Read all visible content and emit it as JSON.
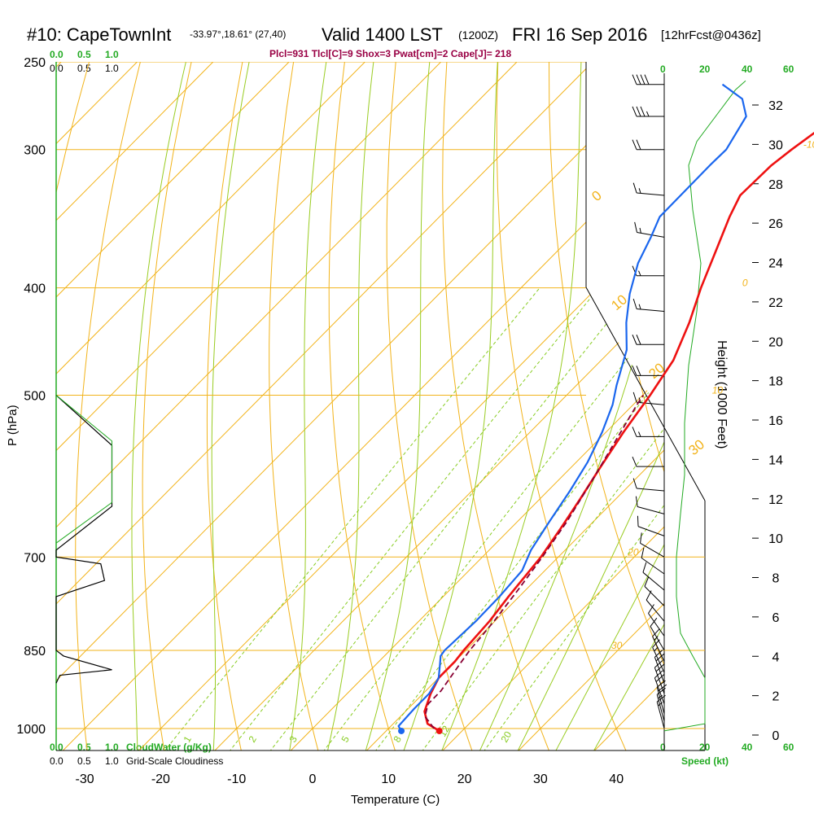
{
  "header": {
    "station": "#10: CapeTownInt",
    "coords": "-33.97°,18.61° (27,40)",
    "valid": "Valid 1400 LST",
    "zulu": "(1200Z)",
    "date": "FRI 16 Sep 2016",
    "forecast": "[12hrFcst@0436z]",
    "indices": "Plcl=931 Tlcl[C]=9 Shox=3 Pwat[cm]=2 Cape[J]= 218"
  },
  "left_scale": {
    "cloudwater_ticks": [
      "0.0",
      "0.5",
      "1.0"
    ],
    "cloudwater_label": "CloudWater (g/Kg)",
    "cloudiness_ticks": [
      "0.0",
      "0.5",
      "1.0"
    ],
    "cloudiness_label": "Grid-Scale Cloudiness"
  },
  "right_scale": {
    "speed_ticks": [
      "0",
      "20",
      "40",
      "60"
    ],
    "speed_label": "Speed (kt)",
    "height_label": "Height (1000 Feet)"
  },
  "colors": {
    "temperature": "#ee1111",
    "dewpoint": "#1a66ee",
    "parcel": "#880033",
    "isobar": "#f2b31a",
    "dry_adiabat": "#f2b31a",
    "moist_adiabat": "#99cc22",
    "mixing_ratio": "#88cc22",
    "green_text": "#22aa22",
    "title_magenta": "#990044"
  },
  "chart_data": {
    "type": "line",
    "title": "#10: CapeTownInt",
    "xlabel": "Temperature (C)",
    "ylabel": "P (hPa)",
    "x_ticks": [
      -30,
      -20,
      -10,
      0,
      10,
      20,
      30,
      40
    ],
    "xlim": [
      -34,
      47
    ],
    "pressure_ticks": [
      250,
      300,
      400,
      500,
      700,
      850,
      1000
    ],
    "ylim": [
      1010,
      250
    ],
    "height_ticks": [
      0,
      2,
      4,
      6,
      8,
      10,
      12,
      14,
      16,
      18,
      20,
      22,
      24,
      26,
      28,
      30,
      32
    ],
    "isotherm_labels": [
      {
        "value": "-10",
        "p": 300
      },
      {
        "value": "0",
        "p": 400
      },
      {
        "value": "10",
        "p": 500
      },
      {
        "value": "20",
        "p": 700
      },
      {
        "value": "30",
        "p": 850
      }
    ],
    "dry_adiabat_labels": [
      "0",
      "10",
      "20",
      "30"
    ],
    "mixing_ratio_labels": [
      "1",
      "2",
      "3",
      "5",
      "8",
      "12",
      "20"
    ],
    "series": [
      {
        "name": "Temperature",
        "points": [
          [
            17,
            1005
          ],
          [
            14.5,
            990
          ],
          [
            12.5,
            965
          ],
          [
            11,
            930
          ],
          [
            10,
            900
          ],
          [
            10,
            870
          ],
          [
            9.7,
            850
          ],
          [
            9.3,
            800
          ],
          [
            8.6,
            760
          ],
          [
            7.7,
            700
          ],
          [
            6.6,
            660
          ],
          [
            5.3,
            620
          ],
          [
            3.8,
            580
          ],
          [
            2.3,
            540
          ],
          [
            1.0,
            500
          ],
          [
            -0.5,
            465
          ],
          [
            -3.3,
            430
          ],
          [
            -6.3,
            400
          ],
          [
            -9.2,
            370
          ],
          [
            -11.8,
            345
          ],
          [
            -13.2,
            330
          ],
          [
            -13.0,
            310
          ],
          [
            -12.4,
            300
          ],
          [
            -11.6,
            290
          ],
          [
            -10.3,
            275
          ],
          [
            -7.2,
            262
          ]
        ]
      },
      {
        "name": "Dewpoint",
        "points": [
          [
            12,
            1005
          ],
          [
            11,
            995
          ],
          [
            10.8,
            960
          ],
          [
            10.8,
            930
          ],
          [
            10,
            900
          ],
          [
            8.4,
            875
          ],
          [
            7.4,
            860
          ],
          [
            7.2,
            850
          ],
          [
            7.5,
            800
          ],
          [
            7.4,
            760
          ],
          [
            7.0,
            720
          ],
          [
            5.5,
            690
          ],
          [
            4.2,
            650
          ],
          [
            2.9,
            610
          ],
          [
            1.5,
            575
          ],
          [
            -0.5,
            540
          ],
          [
            -2.7,
            510
          ],
          [
            -4.7,
            490
          ],
          [
            -8.0,
            455
          ],
          [
            -11.6,
            430
          ],
          [
            -14.9,
            405
          ],
          [
            -17.8,
            380
          ],
          [
            -19.5,
            360
          ],
          [
            -21.0,
            345
          ],
          [
            -21.1,
            310
          ],
          [
            -21.0,
            300
          ],
          [
            -22.7,
            280
          ],
          [
            -25.5,
            270
          ],
          [
            -30.0,
            262
          ]
        ]
      },
      {
        "name": "Parcel",
        "points": [
          [
            16,
            1000
          ],
          [
            13.2,
            975
          ],
          [
            12,
            950
          ],
          [
            12,
            925
          ],
          [
            11.5,
            900
          ],
          [
            10.9,
            870
          ],
          [
            10.5,
            850
          ],
          [
            9.9,
            800
          ],
          [
            9.0,
            750
          ],
          [
            7.9,
            700
          ],
          [
            6.5,
            650
          ],
          [
            4.6,
            600
          ],
          [
            2.4,
            550
          ],
          [
            0.5,
            510
          ],
          [
            0.1,
            500
          ]
        ]
      }
    ],
    "markers": [
      {
        "name": "Surface temperature",
        "x": 17,
        "p": 1005
      },
      {
        "name": "Surface dewpoint",
        "x": 12,
        "p": 1005
      }
    ],
    "wind_speed_profile": {
      "name": "Speed (kt)",
      "points": [
        [
          0,
          1005
        ],
        [
          20,
          990
        ],
        [
          20,
          900
        ],
        [
          14,
          860
        ],
        [
          8,
          820
        ],
        [
          6,
          760
        ],
        [
          6,
          700
        ],
        [
          8,
          640
        ],
        [
          10,
          590
        ],
        [
          10,
          530
        ],
        [
          12,
          470
        ],
        [
          16,
          420
        ],
        [
          18,
          380
        ],
        [
          14,
          340
        ],
        [
          12,
          310
        ],
        [
          16,
          295
        ],
        [
          35,
          265
        ],
        [
          40,
          260
        ]
      ]
    },
    "cloudwater_profile": {
      "name": "CloudWater (g/Kg)",
      "points": [
        [
          0,
          500
        ],
        [
          0.75,
          550
        ],
        [
          0.75,
          625
        ],
        [
          0,
          680
        ]
      ]
    },
    "cloudiness_profile": {
      "name": "Grid-Scale Cloudiness",
      "points": [
        [
          0,
          500
        ],
        [
          0.75,
          555
        ],
        [
          0.75,
          630
        ],
        [
          0,
          690
        ],
        [
          0,
          700
        ],
        [
          0.6,
          710
        ],
        [
          0.65,
          735
        ],
        [
          0,
          760
        ],
        [
          0,
          850
        ],
        [
          0.1,
          860
        ],
        [
          0.75,
          885
        ],
        [
          0.05,
          895
        ],
        [
          0,
          910
        ]
      ]
    },
    "wind_barbs": [
      {
        "p": 262,
        "dir": 270,
        "kt": 40
      },
      {
        "p": 280,
        "dir": 270,
        "kt": 35
      },
      {
        "p": 300,
        "dir": 270,
        "kt": 20
      },
      {
        "p": 330,
        "dir": 275,
        "kt": 15
      },
      {
        "p": 360,
        "dir": 280,
        "kt": 15
      },
      {
        "p": 390,
        "dir": 270,
        "kt": 15
      },
      {
        "p": 420,
        "dir": 275,
        "kt": 15
      },
      {
        "p": 450,
        "dir": 270,
        "kt": 20
      },
      {
        "p": 480,
        "dir": 270,
        "kt": 20
      },
      {
        "p": 510,
        "dir": 275,
        "kt": 15
      },
      {
        "p": 545,
        "dir": 270,
        "kt": 15
      },
      {
        "p": 580,
        "dir": 270,
        "kt": 10
      },
      {
        "p": 610,
        "dir": 275,
        "kt": 10
      },
      {
        "p": 640,
        "dir": 285,
        "kt": 10
      },
      {
        "p": 670,
        "dir": 290,
        "kt": 10
      },
      {
        "p": 700,
        "dir": 300,
        "kt": 10
      },
      {
        "p": 725,
        "dir": 305,
        "kt": 10
      },
      {
        "p": 750,
        "dir": 310,
        "kt": 10
      },
      {
        "p": 775,
        "dir": 315,
        "kt": 10
      },
      {
        "p": 800,
        "dir": 320,
        "kt": 10
      },
      {
        "p": 825,
        "dir": 325,
        "kt": 10
      },
      {
        "p": 850,
        "dir": 330,
        "kt": 10
      },
      {
        "p": 870,
        "dir": 335,
        "kt": 15
      },
      {
        "p": 890,
        "dir": 335,
        "kt": 15
      },
      {
        "p": 910,
        "dir": 340,
        "kt": 20
      },
      {
        "p": 930,
        "dir": 340,
        "kt": 20
      },
      {
        "p": 950,
        "dir": 340,
        "kt": 20
      },
      {
        "p": 970,
        "dir": 345,
        "kt": 20
      },
      {
        "p": 985,
        "dir": 345,
        "kt": 15
      },
      {
        "p": 1000,
        "dir": 345,
        "kt": 15
      }
    ],
    "grid": true
  }
}
